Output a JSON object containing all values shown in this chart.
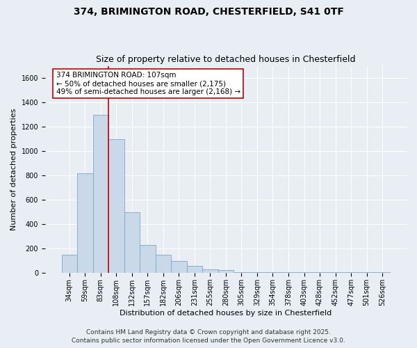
{
  "title_line1": "374, BRIMINGTON ROAD, CHESTERFIELD, S41 0TF",
  "title_line2": "Size of property relative to detached houses in Chesterfield",
  "xlabel": "Distribution of detached houses by size in Chesterfield",
  "ylabel": "Number of detached properties",
  "bin_labels": [
    "34sqm",
    "59sqm",
    "83sqm",
    "108sqm",
    "132sqm",
    "157sqm",
    "182sqm",
    "206sqm",
    "231sqm",
    "255sqm",
    "280sqm",
    "305sqm",
    "329sqm",
    "354sqm",
    "378sqm",
    "403sqm",
    "428sqm",
    "452sqm",
    "477sqm",
    "501sqm",
    "526sqm"
  ],
  "bar_heights": [
    150,
    820,
    1300,
    1100,
    500,
    230,
    150,
    100,
    60,
    30,
    25,
    5,
    5,
    5,
    5,
    5,
    5,
    5,
    5,
    5,
    5
  ],
  "bar_color": "#c9d9ea",
  "bar_edge_color": "#7aa8c8",
  "vline_x": 2.5,
  "vline_color": "#cc0000",
  "annotation_text": "374 BRIMINGTON ROAD: 107sqm\n← 50% of detached houses are smaller (2,175)\n49% of semi-detached houses are larger (2,168) →",
  "ylim": [
    0,
    1700
  ],
  "yticks": [
    0,
    200,
    400,
    600,
    800,
    1000,
    1200,
    1400,
    1600
  ],
  "background_color": "#e8eef4",
  "plot_background": "#e8eef4",
  "grid_color": "#ffffff",
  "footer1": "Contains HM Land Registry data © Crown copyright and database right 2025.",
  "footer2": "Contains public sector information licensed under the Open Government Licence v3.0.",
  "title_fontsize": 10,
  "subtitle_fontsize": 9,
  "annotation_fontsize": 7.5,
  "axis_label_fontsize": 8,
  "tick_fontsize": 7,
  "footer_fontsize": 6.5
}
